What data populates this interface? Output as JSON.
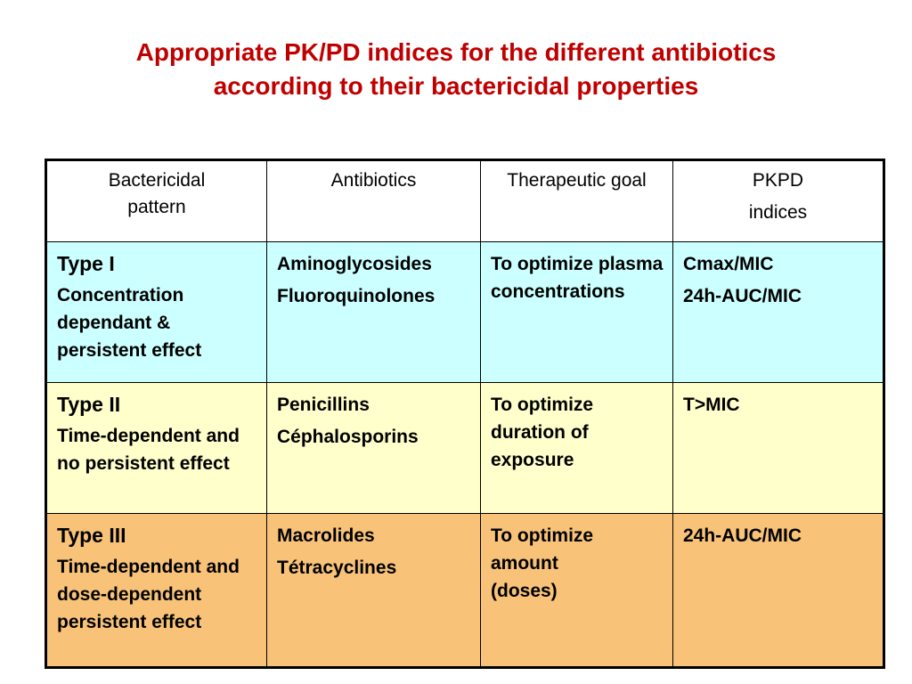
{
  "title": {
    "line1": "Appropriate PK/PD indices for the different antibiotics",
    "line2": "according to their bactericidal properties"
  },
  "table": {
    "headers": {
      "pattern": "Bactericidal pattern",
      "antibiotics": "Antibiotics",
      "goal": "Therapeutic goal",
      "pkpd_line1": "PKPD",
      "pkpd_line2": "indices"
    },
    "rows": [
      {
        "type": "Type I",
        "description": "Concentration dependant & persistent effect",
        "antibiotics": [
          "Aminoglycosides",
          "Fluoroquinolones"
        ],
        "goal": "To optimize plasma concentrations",
        "indices": [
          "Cmax/MIC",
          "24h-AUC/MIC"
        ],
        "color": "#ccffff"
      },
      {
        "type": "Type II",
        "description": "Time-dependent and no persistent effect",
        "antibiotics": [
          "Penicillins",
          "Céphalosporins"
        ],
        "goal": "To optimize duration of exposure",
        "indices": [
          "T>MIC"
        ],
        "color": "#ffffcc"
      },
      {
        "type": "Type III",
        "description": "Time-dependent and dose-dependent persistent effect",
        "antibiotics": [
          "Macrolides",
          "Tétracyclines"
        ],
        "goal": "To optimize amount (doses)",
        "indices": [
          "24h-AUC/MIC"
        ],
        "color": "#f8c378"
      }
    ]
  }
}
